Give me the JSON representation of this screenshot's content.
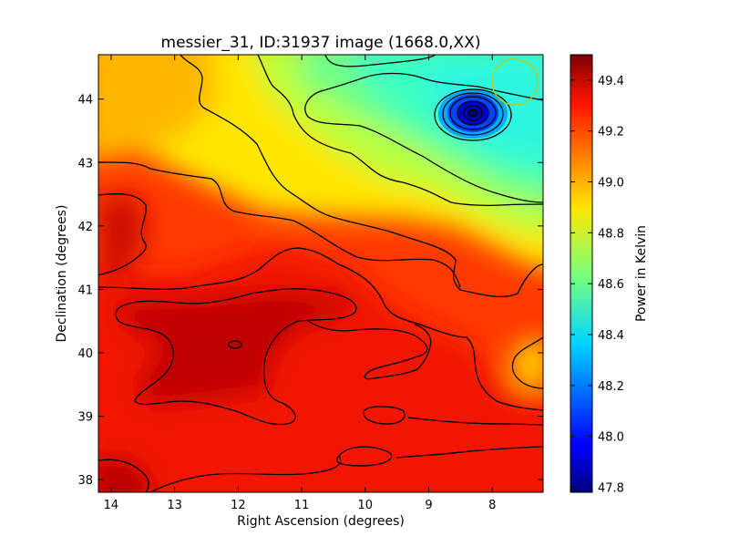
{
  "chart_data": {
    "type": "heatmap",
    "title": "messier_31, ID:31937 image (1668.0,XX)",
    "xlabel": "Right Ascension (degrees)",
    "ylabel": "Declination (degrees)",
    "xlim": [
      14.2,
      7.2
    ],
    "ylim": [
      37.8,
      44.7
    ],
    "x_ticks": [
      "14",
      "13",
      "12",
      "11",
      "10",
      "9",
      "8"
    ],
    "x_tick_values": [
      14,
      13,
      12,
      11,
      10,
      9,
      8
    ],
    "y_ticks": [
      "38",
      "39",
      "40",
      "41",
      "42",
      "43",
      "44"
    ],
    "y_tick_values": [
      38,
      39,
      40,
      41,
      42,
      43,
      44
    ],
    "colorbar": {
      "label": "Power in Kelvin",
      "range": [
        47.78,
        49.5
      ],
      "ticks": [
        "47.8",
        "48.0",
        "48.2",
        "48.4",
        "48.6",
        "48.8",
        "49.0",
        "49.2",
        "49.4"
      ],
      "tick_values": [
        47.8,
        48.0,
        48.2,
        48.4,
        48.6,
        48.8,
        49.0,
        49.2,
        49.4
      ],
      "colormap": "jet"
    },
    "features": [
      {
        "kind": "minimum",
        "ra": 8.3,
        "dec": 43.8,
        "value": 47.8
      },
      {
        "kind": "maximum",
        "ra": 12.0,
        "dec": 40.1,
        "value": 49.5
      },
      {
        "kind": "maximum",
        "ra": 10.9,
        "dec": 40.7,
        "value": 49.45
      },
      {
        "kind": "maximum",
        "ra": 14.0,
        "dec": 38.0,
        "value": 49.4
      },
      {
        "kind": "beam",
        "ra": 7.6,
        "dec": 44.3,
        "color": "#c8c800"
      }
    ],
    "grid": false,
    "contours": true
  }
}
